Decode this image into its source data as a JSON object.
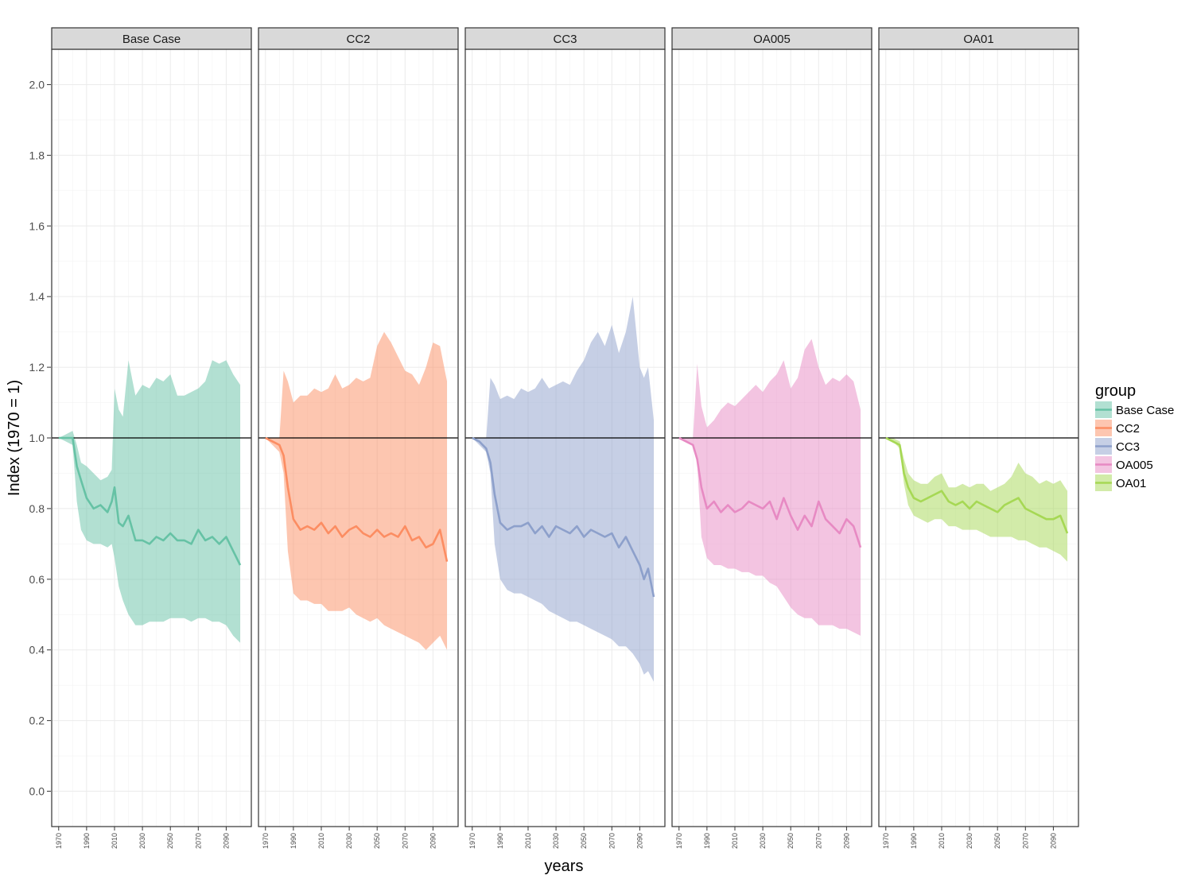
{
  "chart_data": {
    "type": "area",
    "facet_by": "group",
    "xlabel": "years",
    "ylabel": "Index (1970 = 1)",
    "xlim": [
      1965,
      2108
    ],
    "ylim": [
      -0.1,
      2.1
    ],
    "y_ticks": [
      "0.0",
      "0.2",
      "0.4",
      "0.6",
      "0.8",
      "1.0",
      "1.2",
      "1.4",
      "1.6",
      "1.8",
      "2.0"
    ],
    "x_ticks": [
      "1970",
      "1990",
      "2010",
      "2030",
      "2050",
      "2070",
      "2090"
    ],
    "reference_line": 1.0,
    "grid": true,
    "legend": {
      "title": "group",
      "position": "right"
    },
    "panels": [
      {
        "name": "Base Case",
        "color": "#66c2a5",
        "years": [
          1970,
          1975,
          1980,
          1983,
          1986,
          1990,
          1995,
          2000,
          2005,
          2008,
          2010,
          2013,
          2016,
          2020,
          2025,
          2030,
          2035,
          2040,
          2045,
          2050,
          2055,
          2060,
          2065,
          2070,
          2075,
          2080,
          2085,
          2090,
          2095,
          2100
        ],
        "median": [
          1.0,
          1.0,
          1.0,
          0.92,
          0.88,
          0.83,
          0.8,
          0.81,
          0.79,
          0.82,
          0.86,
          0.76,
          0.75,
          0.78,
          0.71,
          0.71,
          0.7,
          0.72,
          0.71,
          0.73,
          0.71,
          0.71,
          0.7,
          0.74,
          0.71,
          0.72,
          0.7,
          0.72,
          0.68,
          0.64
        ],
        "lower": [
          1.0,
          0.99,
          0.98,
          0.82,
          0.74,
          0.71,
          0.7,
          0.7,
          0.69,
          0.7,
          0.66,
          0.58,
          0.54,
          0.5,
          0.47,
          0.47,
          0.48,
          0.48,
          0.48,
          0.49,
          0.49,
          0.49,
          0.48,
          0.49,
          0.49,
          0.48,
          0.48,
          0.47,
          0.44,
          0.42
        ],
        "upper": [
          1.0,
          1.01,
          1.02,
          0.98,
          0.93,
          0.92,
          0.9,
          0.88,
          0.89,
          0.91,
          1.14,
          1.08,
          1.06,
          1.22,
          1.12,
          1.15,
          1.14,
          1.17,
          1.16,
          1.18,
          1.12,
          1.12,
          1.13,
          1.14,
          1.16,
          1.22,
          1.21,
          1.22,
          1.18,
          1.15
        ]
      },
      {
        "name": "CC2",
        "color": "#fc8d62",
        "years": [
          1970,
          1975,
          1980,
          1983,
          1986,
          1990,
          1995,
          2000,
          2005,
          2010,
          2015,
          2020,
          2025,
          2030,
          2035,
          2040,
          2045,
          2050,
          2055,
          2060,
          2065,
          2070,
          2075,
          2080,
          2085,
          2090,
          2095,
          2100
        ],
        "median": [
          1.0,
          0.99,
          0.98,
          0.95,
          0.86,
          0.77,
          0.74,
          0.75,
          0.74,
          0.76,
          0.73,
          0.75,
          0.72,
          0.74,
          0.75,
          0.73,
          0.72,
          0.74,
          0.72,
          0.73,
          0.72,
          0.75,
          0.71,
          0.72,
          0.69,
          0.7,
          0.74,
          0.65
        ],
        "lower": [
          1.0,
          0.98,
          0.96,
          0.9,
          0.68,
          0.56,
          0.54,
          0.54,
          0.53,
          0.53,
          0.51,
          0.51,
          0.51,
          0.52,
          0.5,
          0.49,
          0.48,
          0.49,
          0.47,
          0.46,
          0.45,
          0.44,
          0.43,
          0.42,
          0.4,
          0.42,
          0.44,
          0.4
        ],
        "upper": [
          1.0,
          1.0,
          1.0,
          1.19,
          1.16,
          1.1,
          1.12,
          1.12,
          1.14,
          1.13,
          1.14,
          1.18,
          1.14,
          1.15,
          1.17,
          1.16,
          1.17,
          1.26,
          1.3,
          1.27,
          1.23,
          1.19,
          1.18,
          1.15,
          1.2,
          1.27,
          1.26,
          1.16
        ]
      },
      {
        "name": "CC3",
        "color": "#8da0cb",
        "years": [
          1970,
          1975,
          1980,
          1983,
          1986,
          1990,
          1995,
          2000,
          2005,
          2010,
          2015,
          2020,
          2025,
          2030,
          2035,
          2040,
          2045,
          2050,
          2055,
          2060,
          2065,
          2070,
          2075,
          2080,
          2085,
          2090,
          2093,
          2096,
          2100
        ],
        "median": [
          1.0,
          0.99,
          0.97,
          0.93,
          0.84,
          0.76,
          0.74,
          0.75,
          0.75,
          0.76,
          0.73,
          0.75,
          0.72,
          0.75,
          0.74,
          0.73,
          0.75,
          0.72,
          0.74,
          0.73,
          0.72,
          0.73,
          0.69,
          0.72,
          0.68,
          0.64,
          0.6,
          0.63,
          0.55
        ],
        "lower": [
          1.0,
          0.98,
          0.96,
          0.9,
          0.7,
          0.6,
          0.57,
          0.56,
          0.56,
          0.55,
          0.54,
          0.53,
          0.51,
          0.5,
          0.49,
          0.48,
          0.48,
          0.47,
          0.46,
          0.45,
          0.44,
          0.43,
          0.41,
          0.41,
          0.39,
          0.36,
          0.33,
          0.34,
          0.31
        ],
        "upper": [
          1.0,
          1.0,
          1.0,
          1.17,
          1.15,
          1.11,
          1.12,
          1.11,
          1.14,
          1.13,
          1.14,
          1.17,
          1.14,
          1.15,
          1.16,
          1.15,
          1.19,
          1.22,
          1.27,
          1.3,
          1.26,
          1.32,
          1.24,
          1.3,
          1.4,
          1.2,
          1.17,
          1.2,
          1.05
        ]
      },
      {
        "name": "OA005",
        "color": "#e78ac3",
        "years": [
          1970,
          1975,
          1980,
          1983,
          1986,
          1990,
          1995,
          2000,
          2005,
          2010,
          2015,
          2020,
          2025,
          2030,
          2035,
          2040,
          2045,
          2050,
          2055,
          2060,
          2065,
          2070,
          2075,
          2080,
          2085,
          2090,
          2095,
          2100
        ],
        "median": [
          1.0,
          0.99,
          0.98,
          0.94,
          0.86,
          0.8,
          0.82,
          0.79,
          0.81,
          0.79,
          0.8,
          0.82,
          0.81,
          0.8,
          0.82,
          0.77,
          0.83,
          0.78,
          0.74,
          0.78,
          0.75,
          0.82,
          0.77,
          0.75,
          0.73,
          0.77,
          0.75,
          0.69
        ],
        "lower": [
          1.0,
          0.99,
          0.98,
          0.93,
          0.72,
          0.66,
          0.64,
          0.64,
          0.63,
          0.63,
          0.62,
          0.62,
          0.61,
          0.61,
          0.59,
          0.58,
          0.55,
          0.52,
          0.5,
          0.49,
          0.49,
          0.47,
          0.47,
          0.47,
          0.46,
          0.46,
          0.45,
          0.44
        ],
        "upper": [
          1.0,
          1.0,
          1.0,
          1.21,
          1.09,
          1.03,
          1.05,
          1.08,
          1.1,
          1.09,
          1.11,
          1.13,
          1.15,
          1.13,
          1.16,
          1.18,
          1.22,
          1.14,
          1.17,
          1.25,
          1.28,
          1.2,
          1.15,
          1.17,
          1.16,
          1.18,
          1.16,
          1.08
        ]
      },
      {
        "name": "OA01",
        "color": "#a6d854",
        "years": [
          1970,
          1975,
          1980,
          1983,
          1986,
          1990,
          1995,
          2000,
          2005,
          2010,
          2015,
          2020,
          2025,
          2030,
          2035,
          2040,
          2045,
          2050,
          2055,
          2060,
          2065,
          2070,
          2075,
          2080,
          2085,
          2090,
          2095,
          2100
        ],
        "median": [
          1.0,
          0.99,
          0.98,
          0.9,
          0.86,
          0.83,
          0.82,
          0.83,
          0.84,
          0.85,
          0.82,
          0.81,
          0.82,
          0.8,
          0.82,
          0.81,
          0.8,
          0.79,
          0.81,
          0.82,
          0.83,
          0.8,
          0.79,
          0.78,
          0.77,
          0.77,
          0.78,
          0.73
        ],
        "lower": [
          1.0,
          0.99,
          0.97,
          0.87,
          0.81,
          0.78,
          0.77,
          0.76,
          0.77,
          0.77,
          0.75,
          0.75,
          0.74,
          0.74,
          0.74,
          0.73,
          0.72,
          0.72,
          0.72,
          0.72,
          0.71,
          0.71,
          0.7,
          0.69,
          0.69,
          0.68,
          0.67,
          0.65
        ],
        "upper": [
          1.0,
          1.0,
          0.99,
          0.94,
          0.9,
          0.88,
          0.87,
          0.87,
          0.89,
          0.9,
          0.86,
          0.86,
          0.87,
          0.86,
          0.87,
          0.87,
          0.85,
          0.86,
          0.87,
          0.89,
          0.93,
          0.9,
          0.89,
          0.87,
          0.88,
          0.87,
          0.88,
          0.85
        ]
      }
    ]
  }
}
